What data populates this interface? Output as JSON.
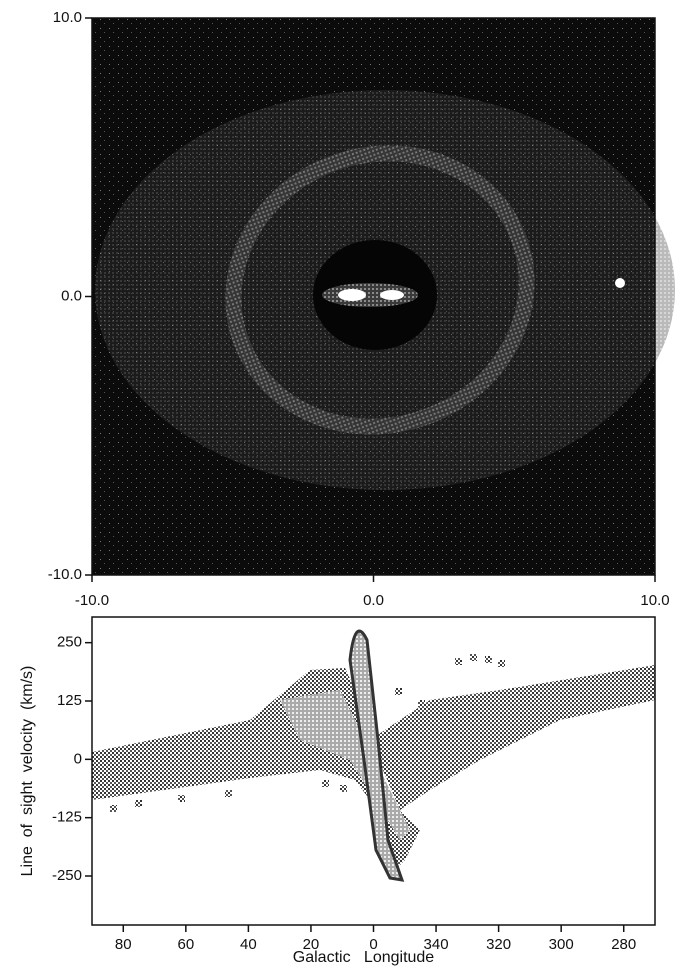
{
  "chart_data": [
    {
      "type": "image",
      "xlim": [
        -10,
        10
      ],
      "ylim": [
        -10,
        10
      ],
      "xticks": [
        {
          "value": -10,
          "label": "-10.0"
        },
        {
          "value": 0,
          "label": "0.0"
        },
        {
          "value": 10,
          "label": "10.0"
        }
      ],
      "yticks": [
        {
          "value": -10,
          "label": "-10.0"
        },
        {
          "value": 0,
          "label": "0.0"
        },
        {
          "value": 10,
          "label": "10.0"
        }
      ]
    },
    {
      "type": "image",
      "xlabel": "Galactic   Longitude",
      "ylabel": "Line  of  sight  velocity  (km/s)",
      "xlim": [
        90,
        -90
      ],
      "ylim": [
        -355,
        305
      ],
      "xticks": [
        80,
        60,
        40,
        20,
        0,
        {
          "value": -20,
          "label": "340"
        },
        {
          "value": -40,
          "label": "320"
        },
        {
          "value": -60,
          "label": "300"
        },
        {
          "value": -80,
          "label": "280"
        }
      ],
      "yticks": [
        250,
        125,
        0,
        -125,
        -250
      ]
    }
  ]
}
